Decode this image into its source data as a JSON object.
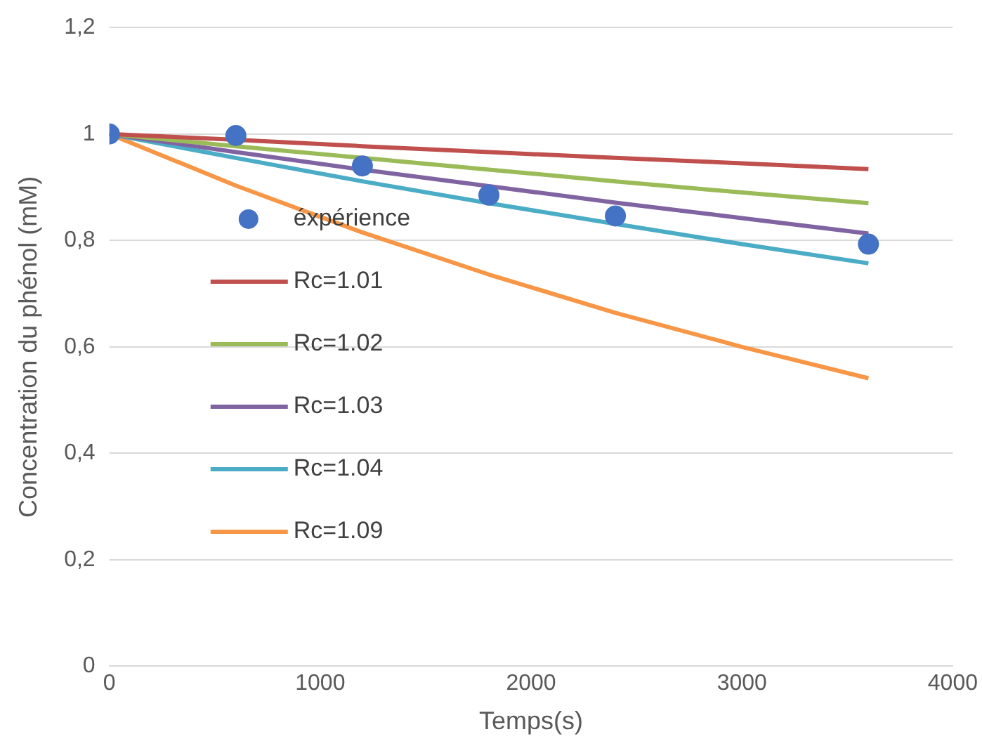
{
  "chart_data": {
    "type": "line",
    "xlabel": "Temps(s)",
    "ylabel": "Concentration du phénol (mM)",
    "x": [
      0,
      600,
      1200,
      1800,
      2400,
      3000,
      3600
    ],
    "series": [
      {
        "name": "éxpérience",
        "type": "scatter",
        "marker": "circle",
        "color": "#4472c4",
        "x": [
          0,
          600,
          1200,
          1800,
          2400,
          3600
        ],
        "values": [
          1,
          0.997,
          0.94,
          0.885,
          0.846,
          0.793
        ]
      },
      {
        "name": "Rc=1.01",
        "color": "#c0504d",
        "values": [
          1,
          0.989,
          0.977,
          0.966,
          0.955,
          0.945,
          0.934
        ]
      },
      {
        "name": "Rc=1.02",
        "color": "#9bbb59",
        "values": [
          1,
          0.977,
          0.955,
          0.933,
          0.911,
          0.89,
          0.87
        ]
      },
      {
        "name": "Rc=1.03",
        "color": "#8064a2",
        "values": [
          1,
          0.966,
          0.933,
          0.902,
          0.871,
          0.842,
          0.813
        ]
      },
      {
        "name": "Rc=1.04",
        "color": "#4bacc6",
        "values": [
          1,
          0.955,
          0.911,
          0.87,
          0.831,
          0.793,
          0.757
        ]
      },
      {
        "name": "Rc=1.09",
        "color": "#f79646",
        "values": [
          1,
          0.903,
          0.815,
          0.736,
          0.664,
          0.6,
          0.541
        ]
      }
    ],
    "xlim": [
      0,
      4000
    ],
    "xticks": [
      0,
      1000,
      2000,
      3000,
      4000
    ],
    "ylim": [
      0,
      1.2
    ],
    "yticks": [
      0,
      {
        "value": 0.2,
        "label": "0,2"
      },
      {
        "value": 0.4,
        "label": "0,4"
      },
      {
        "value": 0.6,
        "label": "0,6"
      },
      {
        "value": 0.8,
        "label": "0,8"
      },
      1,
      {
        "value": 1.2,
        "label": "1,2"
      }
    ],
    "grid": "y",
    "legend": "left",
    "marker": "none",
    "line_style": "solid"
  }
}
